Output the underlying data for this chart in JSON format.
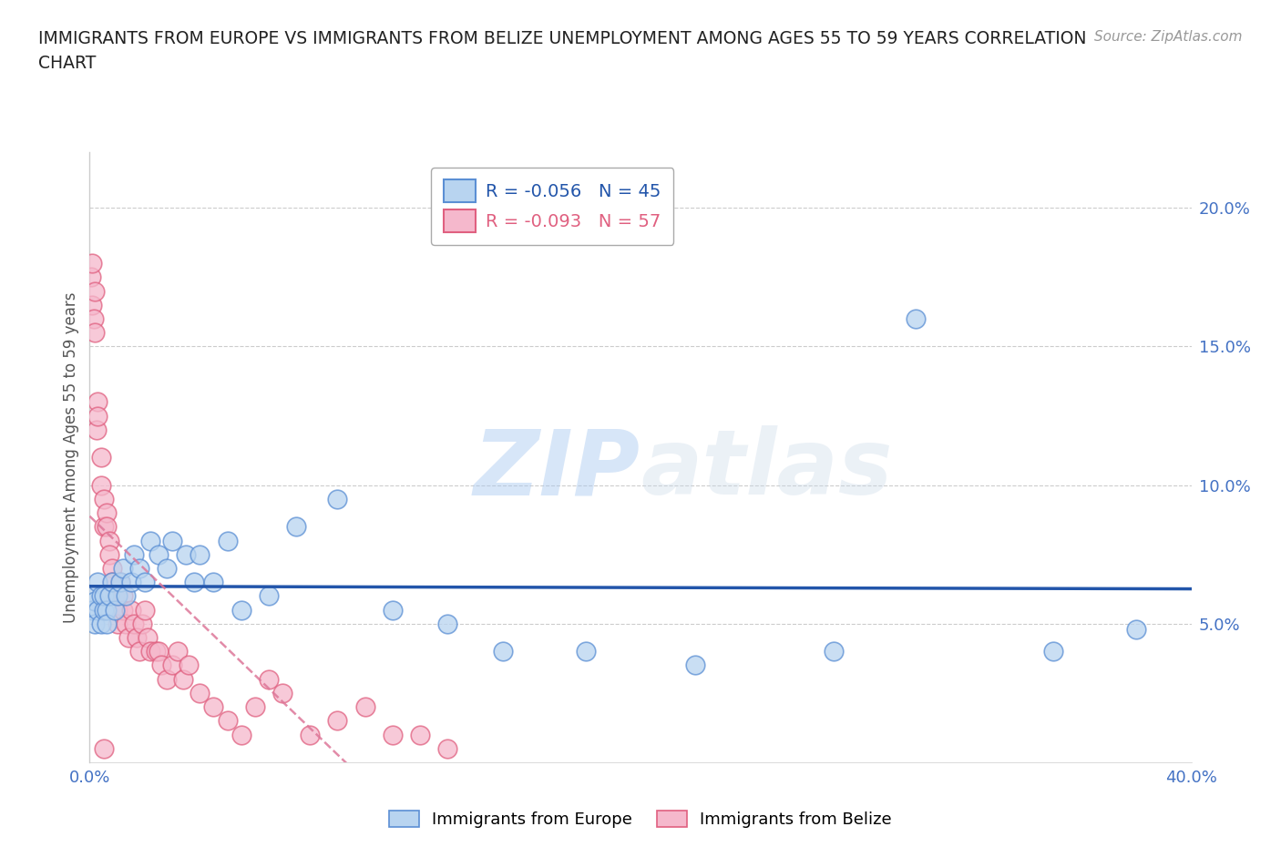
{
  "title_line1": "IMMIGRANTS FROM EUROPE VS IMMIGRANTS FROM BELIZE UNEMPLOYMENT AMONG AGES 55 TO 59 YEARS CORRELATION",
  "title_line2": "CHART",
  "source": "Source: ZipAtlas.com",
  "ylabel": "Unemployment Among Ages 55 to 59 years",
  "xlim": [
    0.0,
    0.4
  ],
  "ylim": [
    0.0,
    0.22
  ],
  "xtick_positions": [
    0.0,
    0.05,
    0.1,
    0.15,
    0.2,
    0.25,
    0.3,
    0.35,
    0.4
  ],
  "xticklabels": [
    "0.0%",
    "",
    "",
    "",
    "",
    "",
    "",
    "",
    "40.0%"
  ],
  "ytick_positions": [
    0.05,
    0.1,
    0.15,
    0.2
  ],
  "yticklabels": [
    "5.0%",
    "10.0%",
    "15.0%",
    "20.0%"
  ],
  "watermark_text": "ZIPatlas",
  "europe_color_face": "#b8d4f0",
  "europe_color_edge": "#5b8fd4",
  "belize_color_face": "#f5b8cc",
  "belize_color_edge": "#e06080",
  "europe_line_color": "#2255aa",
  "belize_line_color": "#dd7799",
  "europe_R": "-0.056",
  "europe_N": "45",
  "belize_R": "-0.093",
  "belize_N": "57",
  "legend_label_europe": "Immigrants from Europe",
  "legend_label_belize": "Immigrants from Belize",
  "title_color": "#222222",
  "axis_tick_color": "#4472c4",
  "ylabel_color": "#555555",
  "source_color": "#999999",
  "grid_color": "#cccccc",
  "background_color": "#ffffff",
  "europe_x": [
    0.001,
    0.001,
    0.002,
    0.002,
    0.003,
    0.003,
    0.004,
    0.004,
    0.005,
    0.005,
    0.006,
    0.006,
    0.007,
    0.008,
    0.009,
    0.01,
    0.011,
    0.012,
    0.013,
    0.015,
    0.016,
    0.018,
    0.02,
    0.022,
    0.025,
    0.028,
    0.03,
    0.035,
    0.038,
    0.04,
    0.045,
    0.05,
    0.055,
    0.065,
    0.075,
    0.09,
    0.11,
    0.13,
    0.15,
    0.18,
    0.22,
    0.27,
    0.3,
    0.35,
    0.38
  ],
  "europe_y": [
    0.06,
    0.055,
    0.058,
    0.05,
    0.065,
    0.055,
    0.06,
    0.05,
    0.055,
    0.06,
    0.055,
    0.05,
    0.06,
    0.065,
    0.055,
    0.06,
    0.065,
    0.07,
    0.06,
    0.065,
    0.075,
    0.07,
    0.065,
    0.08,
    0.075,
    0.07,
    0.08,
    0.075,
    0.065,
    0.075,
    0.065,
    0.08,
    0.055,
    0.06,
    0.085,
    0.095,
    0.055,
    0.05,
    0.04,
    0.04,
    0.035,
    0.04,
    0.16,
    0.04,
    0.048
  ],
  "belize_x": [
    0.0005,
    0.001,
    0.001,
    0.0015,
    0.002,
    0.002,
    0.0025,
    0.003,
    0.003,
    0.004,
    0.004,
    0.005,
    0.005,
    0.006,
    0.006,
    0.007,
    0.007,
    0.008,
    0.008,
    0.009,
    0.01,
    0.01,
    0.011,
    0.012,
    0.012,
    0.013,
    0.014,
    0.015,
    0.016,
    0.017,
    0.018,
    0.019,
    0.02,
    0.021,
    0.022,
    0.024,
    0.025,
    0.026,
    0.028,
    0.03,
    0.032,
    0.034,
    0.036,
    0.04,
    0.045,
    0.05,
    0.055,
    0.06,
    0.065,
    0.07,
    0.08,
    0.09,
    0.1,
    0.11,
    0.12,
    0.13,
    0.005
  ],
  "belize_y": [
    0.175,
    0.18,
    0.165,
    0.16,
    0.17,
    0.155,
    0.12,
    0.13,
    0.125,
    0.11,
    0.1,
    0.095,
    0.085,
    0.09,
    0.085,
    0.08,
    0.075,
    0.07,
    0.065,
    0.06,
    0.055,
    0.05,
    0.065,
    0.06,
    0.055,
    0.05,
    0.045,
    0.055,
    0.05,
    0.045,
    0.04,
    0.05,
    0.055,
    0.045,
    0.04,
    0.04,
    0.04,
    0.035,
    0.03,
    0.035,
    0.04,
    0.03,
    0.035,
    0.025,
    0.02,
    0.015,
    0.01,
    0.02,
    0.03,
    0.025,
    0.01,
    0.015,
    0.02,
    0.01,
    0.01,
    0.005,
    0.005
  ]
}
